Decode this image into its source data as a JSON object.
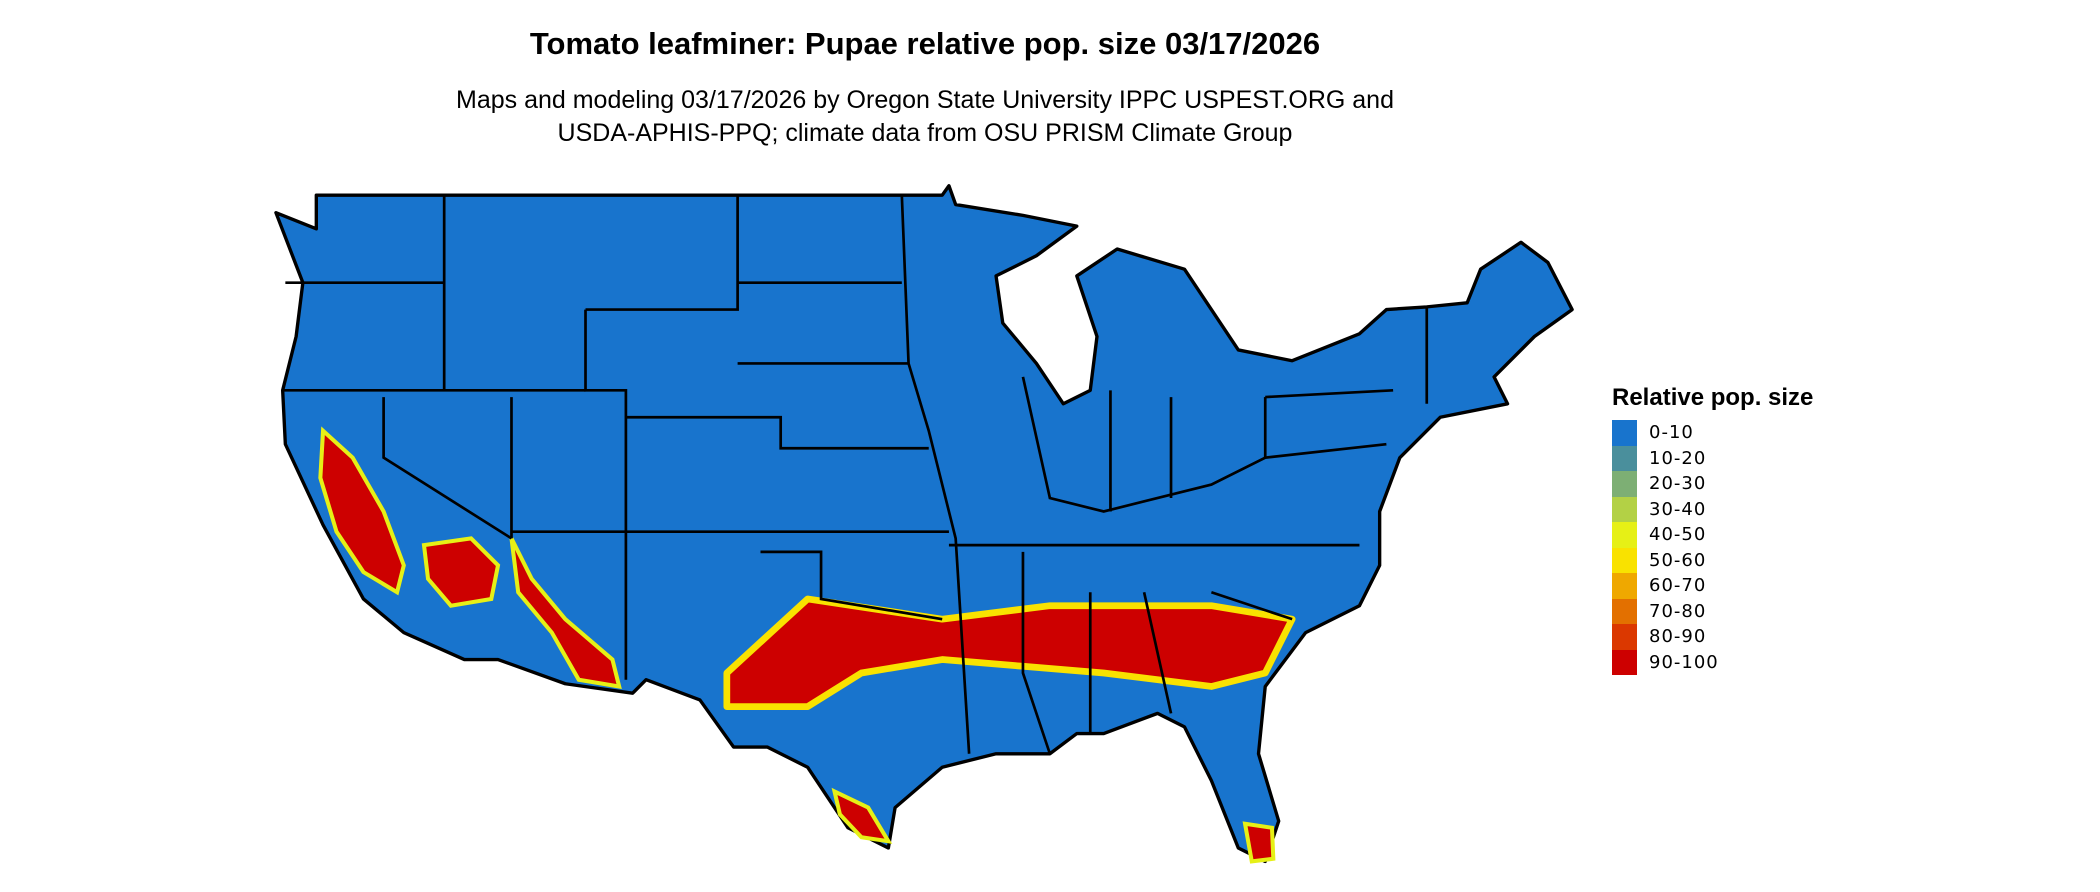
{
  "title": "Tomato leafminer: Pupae relative pop. size 03/17/2026",
  "subtitle_line1": "Maps and modeling 03/17/2026 by Oregon State University IPPC USPEST.ORG and",
  "subtitle_line2": "USDA-APHIS-PPQ; climate data from OSU PRISM Climate Group",
  "legend": {
    "title": "Relative pop. size",
    "items": [
      {
        "label": "0-10",
        "color": "#1874CD"
      },
      {
        "label": "10-20",
        "color": "#4A8F9C"
      },
      {
        "label": "20-30",
        "color": "#7DAF74"
      },
      {
        "label": "30-40",
        "color": "#B3D145"
      },
      {
        "label": "40-50",
        "color": "#E6F016"
      },
      {
        "label": "50-60",
        "color": "#F9E200"
      },
      {
        "label": "60-70",
        "color": "#EFA800"
      },
      {
        "label": "70-80",
        "color": "#E37000"
      },
      {
        "label": "80-90",
        "color": "#DB3800"
      },
      {
        "label": "90-100",
        "color": "#CD0000"
      }
    ]
  },
  "map": {
    "region": "Contiguous United States",
    "base_color": "#1874CD",
    "high_color": "#CD0000",
    "border_color": "#000000"
  }
}
